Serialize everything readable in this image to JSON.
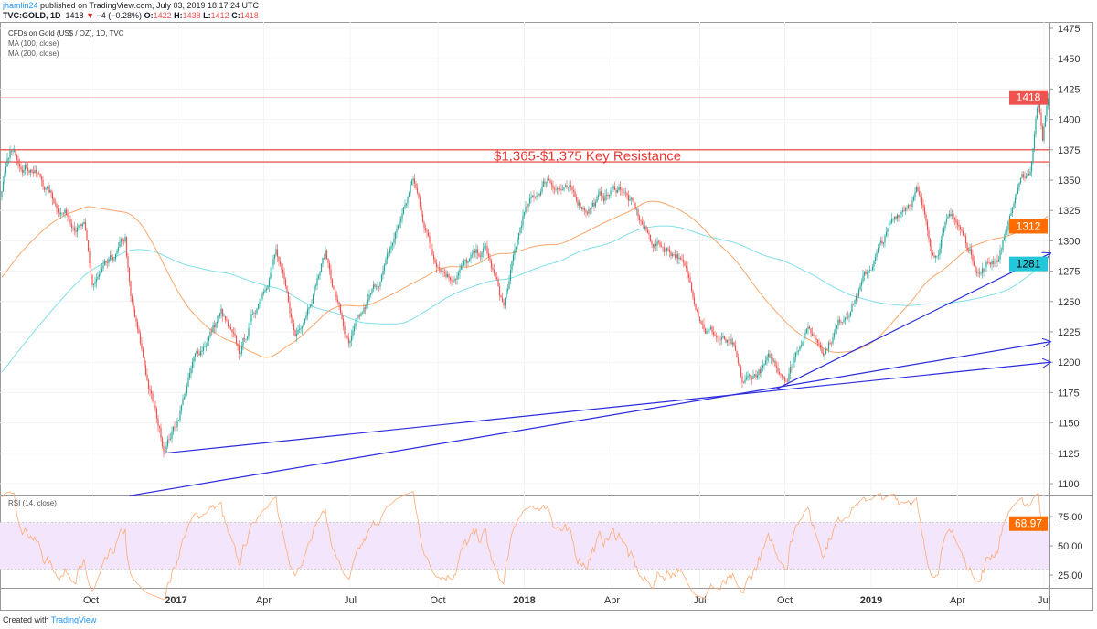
{
  "header": {
    "user": "jhamlin24",
    "published": "published on TradingView.com, July 03, 2019 18:17:24 UTC",
    "symbol": "TVC:GOLD, 1D",
    "last": "1418",
    "change": "−4 (−0.28%)",
    "o_label": "O:",
    "o": "1422",
    "h_label": "H:",
    "h": "1438",
    "l_label": "L:",
    "l": "1412",
    "c_label": "C:",
    "c": "1418"
  },
  "legend": {
    "title": "CFDs on Gold (US$ / OZ), 1D, TVC",
    "ma100": "MA (100, close)",
    "ma200": "MA (200, close)"
  },
  "rsi_title": "RSI (14, close)",
  "footer": {
    "created": "Created with",
    "brand": "TradingView"
  },
  "colors": {
    "up": "#26a69a",
    "down": "#ef5350",
    "ma100": "#f9a66a",
    "ma200": "#80deea",
    "rsi": "#ffab76",
    "trend": "#2b2bdc",
    "resistance": "#e53935",
    "band": "#f3e6fc"
  },
  "chart_data": {
    "type": "candlestick",
    "title": "CFDs on Gold (US$ / OZ), 1D, TVC",
    "ylim": [
      1090,
      1480
    ],
    "y_ticks": [
      1100,
      1125,
      1150,
      1175,
      1200,
      1225,
      1250,
      1275,
      1300,
      1325,
      1350,
      1375,
      1400,
      1425,
      1450,
      1475
    ],
    "x_ticks": [
      {
        "bar": 65,
        "label": "Oct"
      },
      {
        "bar": 127,
        "label": "2017",
        "bold": true
      },
      {
        "bar": 191,
        "label": "Apr"
      },
      {
        "bar": 254,
        "label": "Jul"
      },
      {
        "bar": 318,
        "label": "Oct"
      },
      {
        "bar": 381,
        "label": "2018",
        "bold": true
      },
      {
        "bar": 445,
        "label": "Apr"
      },
      {
        "bar": 509,
        "label": "Jul"
      },
      {
        "bar": 571,
        "label": "Oct"
      },
      {
        "bar": 634,
        "label": "2019",
        "bold": true
      },
      {
        "bar": 697,
        "label": "Apr"
      },
      {
        "bar": 760,
        "label": "Jul"
      }
    ],
    "close_anchors": [
      [
        -200,
        1080
      ],
      [
        -150,
        1070
      ],
      [
        -110,
        1200
      ],
      [
        -80,
        1240
      ],
      [
        -40,
        1270
      ],
      [
        -10,
        1320
      ],
      [
        0,
        1340
      ],
      [
        6,
        1370
      ],
      [
        22,
        1362
      ],
      [
        40,
        1330
      ],
      [
        60,
        1310
      ],
      [
        66,
        1262
      ],
      [
        80,
        1280
      ],
      [
        90,
        1300
      ],
      [
        94,
        1250
      ],
      [
        107,
        1180
      ],
      [
        118,
        1130
      ],
      [
        127,
        1150
      ],
      [
        140,
        1200
      ],
      [
        160,
        1240
      ],
      [
        173,
        1205
      ],
      [
        200,
        1292
      ],
      [
        214,
        1220
      ],
      [
        236,
        1290
      ],
      [
        253,
        1212
      ],
      [
        280,
        1280
      ],
      [
        300,
        1350
      ],
      [
        314,
        1290
      ],
      [
        327,
        1272
      ],
      [
        353,
        1292
      ],
      [
        366,
        1245
      ],
      [
        380,
        1320
      ],
      [
        398,
        1352
      ],
      [
        426,
        1328
      ],
      [
        452,
        1345
      ],
      [
        473,
        1300
      ],
      [
        493,
        1290
      ],
      [
        513,
        1230
      ],
      [
        533,
        1210
      ],
      [
        540,
        1180
      ],
      [
        560,
        1200
      ],
      [
        573,
        1190
      ],
      [
        586,
        1230
      ],
      [
        600,
        1212
      ],
      [
        626,
        1262
      ],
      [
        653,
        1322
      ],
      [
        667,
        1342
      ],
      [
        680,
        1290
      ],
      [
        693,
        1322
      ],
      [
        713,
        1275
      ],
      [
        727,
        1288
      ],
      [
        740,
        1340
      ],
      [
        750,
        1358
      ],
      [
        756,
        1420
      ],
      [
        759,
        1390
      ],
      [
        763,
        1418
      ]
    ],
    "last_price": 1418,
    "ma100_last": 1312,
    "ma200_last": 1281,
    "rsi_last": 68.97,
    "rsi_ylim": [
      10,
      90
    ],
    "rsi_ticks": [
      "25.00",
      "50.00",
      "75.00"
    ],
    "rsi_band": [
      30,
      70
    ],
    "resistance": {
      "levels": [
        1365,
        1375
      ],
      "label": "$1,365-$1,375 Key Resistance"
    },
    "trendlines": [
      {
        "from": [
          118,
          1125
        ],
        "to": [
          765,
          1200
        ]
      },
      {
        "from": [
          93,
          1090
        ],
        "to": [
          765,
          1217
        ]
      },
      {
        "from": [
          565,
          1178
        ],
        "to": [
          765,
          1290
        ]
      }
    ]
  }
}
